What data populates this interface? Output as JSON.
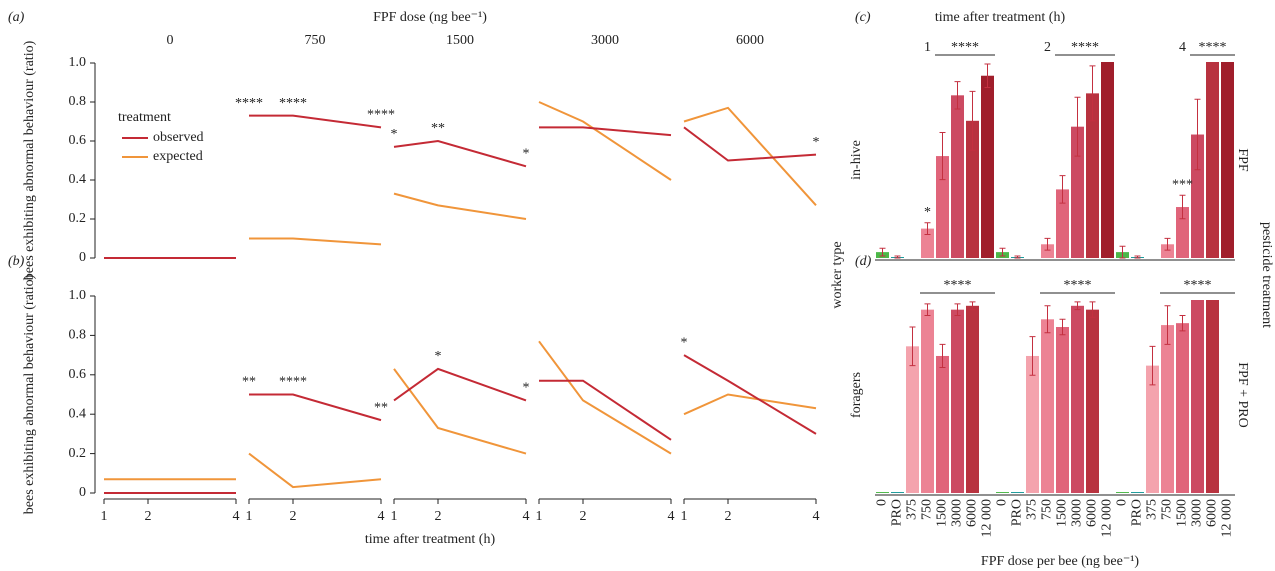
{
  "chart_data": [
    {
      "type": "line",
      "panel": "(a)",
      "title": "FPF dose (ng bee⁻¹)",
      "ylabel": "bees exhibiting abnormal behaviour (ratio)",
      "ylim": [
        0,
        1
      ],
      "yticks": [
        0,
        0.2,
        0.4,
        0.6,
        0.8,
        {
          "value": 1,
          "label": "1.0"
        }
      ],
      "xlim": [
        1,
        4
      ],
      "x": [
        1,
        2,
        4
      ],
      "legend": {
        "title": "treatment"
      },
      "series": [
        {
          "name": "observed",
          "color": "#c42a35"
        },
        {
          "name": "expected",
          "color": "#f0953a"
        }
      ],
      "facets": [
        {
          "title": "0",
          "series": [
            {
              "values": [
                0,
                0,
                0
              ]
            },
            {
              "values": [
                0,
                0,
                0
              ]
            }
          ],
          "annotations": []
        },
        {
          "title": "750",
          "series": [
            {
              "values": [
                0.73,
                0.73,
                0.67
              ]
            },
            {
              "values": [
                0.1,
                0.1,
                0.07
              ]
            }
          ],
          "annotations": [
            {
              "x": 1,
              "text": "****"
            },
            {
              "x": 2,
              "text": "****"
            },
            {
              "x": 4,
              "text": "****"
            }
          ]
        },
        {
          "title": "1500",
          "series": [
            {
              "values": [
                0.57,
                0.6,
                0.47
              ]
            },
            {
              "values": [
                0.33,
                0.27,
                0.2
              ]
            }
          ],
          "annotations": [
            {
              "x": 1,
              "text": "*"
            },
            {
              "x": 2,
              "text": "**"
            },
            {
              "x": 4,
              "text": "*"
            }
          ]
        },
        {
          "title": "3000",
          "series": [
            {
              "values": [
                0.67,
                0.67,
                0.63
              ]
            },
            {
              "values": [
                0.8,
                0.7,
                0.4
              ]
            }
          ],
          "annotations": []
        },
        {
          "title": "6000",
          "series": [
            {
              "values": [
                0.67,
                0.5,
                0.53
              ]
            },
            {
              "values": [
                0.7,
                0.77,
                0.27
              ]
            }
          ],
          "annotations": [
            {
              "x": 4,
              "text": "*"
            }
          ]
        }
      ]
    },
    {
      "type": "line",
      "panel": "(b)",
      "xlabel": "time after treatment (h)",
      "ylabel": "bees exhibiting abnormal behaviour (ratio)",
      "ylim": [
        0,
        1
      ],
      "yticks": [
        0,
        0.2,
        0.4,
        0.6,
        0.8,
        {
          "value": 1,
          "label": "1.0"
        }
      ],
      "xlim": [
        1,
        4
      ],
      "x": [
        1,
        2,
        4
      ],
      "xticks": [
        1,
        2,
        4
      ],
      "series": [
        {
          "color": "#c42a35"
        },
        {
          "color": "#f0953a"
        }
      ],
      "facets": [
        {
          "series": [
            {
              "values": [
                0,
                0,
                0
              ]
            },
            {
              "values": [
                0.07,
                0.07,
                0.07
              ]
            }
          ],
          "annotations": []
        },
        {
          "series": [
            {
              "values": [
                0.5,
                0.5,
                0.37
              ]
            },
            {
              "values": [
                0.2,
                0.03,
                0.07
              ]
            }
          ],
          "annotations": [
            {
              "x": 1,
              "text": "**"
            },
            {
              "x": 2,
              "text": "****"
            },
            {
              "x": 4,
              "text": "**"
            }
          ]
        },
        {
          "series": [
            {
              "values": [
                0.47,
                0.63,
                0.47
              ]
            },
            {
              "values": [
                0.63,
                0.33,
                0.2
              ]
            }
          ],
          "annotations": [
            {
              "x": 2,
              "text": "*"
            },
            {
              "x": 4,
              "text": "*"
            }
          ]
        },
        {
          "series": [
            {
              "values": [
                0.57,
                0.57,
                0.27
              ]
            },
            {
              "values": [
                0.77,
                0.47,
                0.2
              ]
            }
          ],
          "annotations": []
        },
        {
          "series": [
            {
              "values": [
                0.7,
                0.57,
                0.3
              ]
            },
            {
              "values": [
                0.4,
                0.5,
                0.43
              ]
            }
          ],
          "annotations": [
            {
              "x": 1,
              "text": "*"
            }
          ]
        }
      ]
    },
    {
      "type": "bar",
      "panel": "(c)",
      "title": "time after treatment (h)",
      "row_label": "in-hive",
      "treatment_label": "FPF",
      "ylim": [
        0,
        1
      ],
      "facets": [
        {
          "title": "1",
          "values": [
            0.03,
            0.005,
            null,
            0.15,
            0.52,
            0.83,
            0.7,
            0.93
          ],
          "errors": [
            0.02,
            0.005,
            null,
            0.03,
            0.12,
            0.07,
            0.15,
            0.06
          ],
          "bracket": {
            "from": 4,
            "to": 7,
            "text": "****"
          },
          "annotations": [
            {
              "index": 3,
              "text": "*"
            }
          ]
        },
        {
          "title": "2",
          "values": [
            0.03,
            0.005,
            null,
            0.07,
            0.35,
            0.67,
            0.84,
            1.0
          ],
          "errors": [
            0.02,
            0.005,
            null,
            0.03,
            0.07,
            0.15,
            0.14,
            0
          ],
          "bracket": {
            "from": 4,
            "to": 7,
            "text": "****"
          },
          "annotations": []
        },
        {
          "title": "4",
          "values": [
            0.03,
            0.005,
            null,
            0.07,
            0.26,
            0.63,
            1.0,
            1.0
          ],
          "errors": [
            0.03,
            0.005,
            null,
            0.03,
            0.06,
            0.18,
            0,
            0
          ],
          "bracket": {
            "from": 5,
            "to": 7,
            "text": "****"
          },
          "annotations": [
            {
              "index": 4,
              "text": "***"
            }
          ]
        }
      ]
    },
    {
      "type": "bar",
      "panel": "(d)",
      "row_label": "foragers",
      "treatment_label": "FPF + PRO",
      "xlabel": "FPF dose per bee (ng bee⁻¹)",
      "categories": [
        "0",
        "PRO",
        "375",
        "750",
        "1500",
        "3000",
        "6000",
        "12 000"
      ],
      "colors": [
        "#4cb848",
        "#1a9a9a",
        "#f4a3ad",
        "#ec8394",
        "#e0647a",
        "#cc4a62",
        "#b8323f",
        "#a01e2b"
      ],
      "ylim": [
        0,
        1
      ],
      "facets": [
        {
          "values": [
            0.005,
            0.005,
            0.76,
            0.95,
            0.71,
            0.95,
            0.97,
            null
          ],
          "errors": [
            0,
            0,
            0.1,
            0.03,
            0.06,
            0.03,
            0.02,
            null
          ],
          "bracket": {
            "from": 3,
            "to": 7,
            "text": "****"
          }
        },
        {
          "values": [
            0.005,
            0.005,
            0.71,
            0.9,
            0.86,
            0.97,
            0.95,
            null
          ],
          "errors": [
            0,
            0,
            0.1,
            0.07,
            0.04,
            0.02,
            0.04,
            null
          ],
          "bracket": {
            "from": 3,
            "to": 7,
            "text": "****"
          }
        },
        {
          "values": [
            0.005,
            0.005,
            0.66,
            0.87,
            0.88,
            1.0,
            1.0,
            null
          ],
          "errors": [
            0,
            0,
            0.1,
            0.1,
            0.04,
            0,
            0,
            null
          ],
          "bracket": {
            "from": 3,
            "to": 7,
            "text": "****"
          }
        }
      ]
    }
  ],
  "worker_type_label": "worker type",
  "pesticide_label": "pesticide treatment"
}
